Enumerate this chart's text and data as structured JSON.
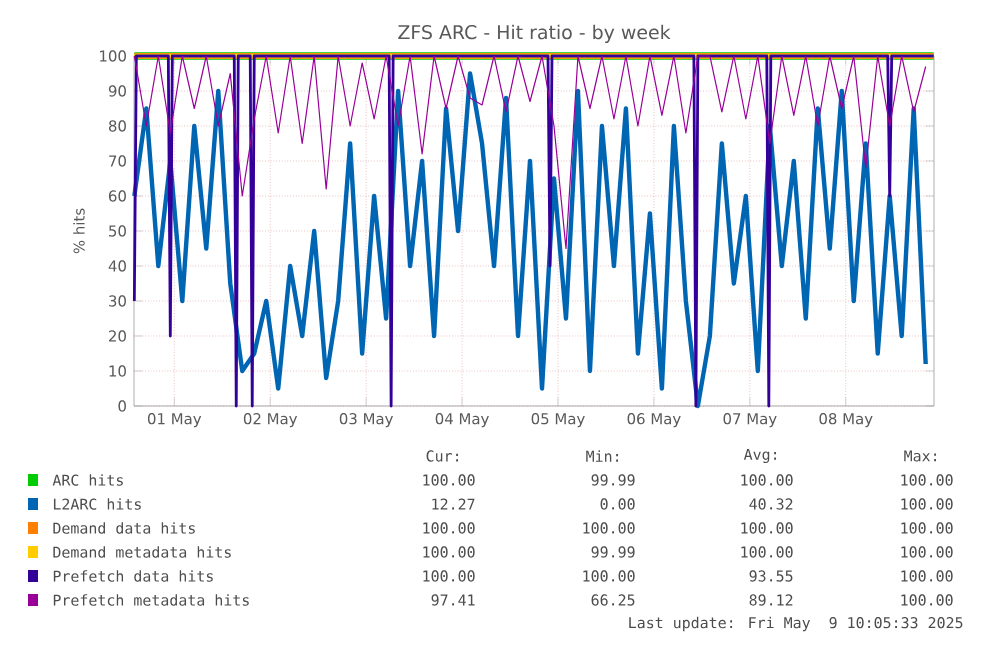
{
  "chart_data": {
    "type": "line",
    "title": "ZFS ARC - Hit ratio - by week",
    "ylabel": "% hits",
    "xlim": [
      "2025-04-30T13:55",
      "2025-05-08T22:05"
    ],
    "ylim": [
      0,
      100
    ],
    "xticks": [
      {
        "value": "2025-05-01",
        "label": "01 May"
      },
      {
        "value": "2025-05-02",
        "label": "02 May"
      },
      {
        "value": "2025-05-03",
        "label": "03 May"
      },
      {
        "value": "2025-05-04",
        "label": "04 May"
      },
      {
        "value": "2025-05-05",
        "label": "05 May"
      },
      {
        "value": "2025-05-06",
        "label": "06 May"
      },
      {
        "value": "2025-05-07",
        "label": "07 May"
      },
      {
        "value": "2025-05-08",
        "label": "08 May"
      }
    ],
    "yticks": [
      0,
      10,
      20,
      30,
      40,
      50,
      60,
      70,
      80,
      90,
      100
    ],
    "grid": true,
    "legend": "bottom",
    "x": [
      "2025-04-30T14:00",
      "2025-04-30T17:00",
      "2025-04-30T20:00",
      "2025-04-30T23:00",
      "2025-05-01T02:00",
      "2025-05-01T05:00",
      "2025-05-01T08:00",
      "2025-05-01T11:00",
      "2025-05-01T14:00",
      "2025-05-01T17:00",
      "2025-05-01T20:00",
      "2025-05-01T23:00",
      "2025-05-02T02:00",
      "2025-05-02T05:00",
      "2025-05-02T08:00",
      "2025-05-02T11:00",
      "2025-05-02T14:00",
      "2025-05-02T17:00",
      "2025-05-02T20:00",
      "2025-05-02T23:00",
      "2025-05-03T02:00",
      "2025-05-03T05:00",
      "2025-05-03T08:00",
      "2025-05-03T11:00",
      "2025-05-03T14:00",
      "2025-05-03T17:00",
      "2025-05-03T20:00",
      "2025-05-03T23:00",
      "2025-05-04T02:00",
      "2025-05-04T05:00",
      "2025-05-04T08:00",
      "2025-05-04T11:00",
      "2025-05-04T14:00",
      "2025-05-04T17:00",
      "2025-05-04T20:00",
      "2025-05-04T23:00",
      "2025-05-05T02:00",
      "2025-05-05T05:00",
      "2025-05-05T08:00",
      "2025-05-05T11:00",
      "2025-05-05T14:00",
      "2025-05-05T17:00",
      "2025-05-05T20:00",
      "2025-05-05T23:00",
      "2025-05-06T02:00",
      "2025-05-06T05:00",
      "2025-05-06T08:00",
      "2025-05-06T11:00",
      "2025-05-06T14:00",
      "2025-05-06T17:00",
      "2025-05-06T20:00",
      "2025-05-06T23:00",
      "2025-05-07T02:00",
      "2025-05-07T05:00",
      "2025-05-07T08:00",
      "2025-05-07T11:00",
      "2025-05-07T14:00",
      "2025-05-07T17:00",
      "2025-05-07T20:00",
      "2025-05-07T23:00",
      "2025-05-08T02:00",
      "2025-05-08T05:00",
      "2025-05-08T08:00",
      "2025-05-08T11:00",
      "2025-05-08T14:00",
      "2025-05-08T17:00",
      "2025-05-08T20:00"
    ],
    "series": [
      {
        "name": "ARC hits",
        "color": "#00cc00",
        "x": [
          "2025-04-30T14:00",
          "2025-05-08T22:00"
        ],
        "values": [
          100,
          100
        ]
      },
      {
        "name": "L2ARC hits",
        "color": "#0066b3",
        "values": [
          60,
          85,
          40,
          70,
          30,
          80,
          45,
          90,
          35,
          10,
          15,
          30,
          5,
          40,
          20,
          50,
          8,
          30,
          75,
          15,
          60,
          25,
          90,
          40,
          70,
          20,
          85,
          50,
          95,
          75,
          40,
          88,
          20,
          70,
          5,
          65,
          25,
          90,
          10,
          80,
          40,
          85,
          15,
          55,
          5,
          80,
          30,
          0,
          20,
          75,
          35,
          60,
          10,
          80,
          40,
          70,
          25,
          85,
          45,
          90,
          30,
          75,
          15,
          60,
          20,
          85,
          12
        ]
      },
      {
        "name": "Demand data hits",
        "color": "#ff8000",
        "x": [
          "2025-04-30T14:00",
          "2025-05-08T22:00"
        ],
        "values": [
          100,
          100
        ]
      },
      {
        "name": "Demand metadata hits",
        "color": "#ffcc00",
        "x": [
          "2025-04-30T14:00",
          "2025-05-08T22:00"
        ],
        "values": [
          100,
          100
        ]
      },
      {
        "name": "Prefetch data hits",
        "color": "#330099",
        "x": [
          "2025-04-30T14:00",
          "2025-04-30T14:30",
          "2025-04-30T22:30",
          "2025-04-30T23:00",
          "2025-04-30T23:30",
          "2025-05-01T15:00",
          "2025-05-01T15:30",
          "2025-05-01T16:00",
          "2025-05-01T19:00",
          "2025-05-01T19:30",
          "2025-05-01T20:00",
          "2025-05-03T05:45",
          "2025-05-03T06:15",
          "2025-05-03T06:45",
          "2025-05-04T21:30",
          "2025-05-04T22:00",
          "2025-05-04T22:30",
          "2025-05-06T10:00",
          "2025-05-06T10:30",
          "2025-05-06T11:00",
          "2025-05-07T04:15",
          "2025-05-07T04:45",
          "2025-05-07T05:15",
          "2025-05-08T10:30",
          "2025-05-08T11:00",
          "2025-05-08T11:30",
          "2025-05-08T22:00"
        ],
        "values": [
          30,
          100,
          100,
          20,
          100,
          100,
          0,
          100,
          100,
          0,
          100,
          100,
          0,
          100,
          100,
          40,
          100,
          100,
          0,
          100,
          100,
          0,
          100,
          100,
          60,
          100,
          100
        ]
      },
      {
        "name": "Prefetch metadata hits",
        "color": "#990099",
        "values": [
          100,
          80,
          100,
          78,
          100,
          85,
          100,
          80,
          95,
          60,
          82,
          100,
          78,
          100,
          75,
          100,
          62,
          100,
          80,
          98,
          82,
          100,
          80,
          100,
          72,
          100,
          85,
          100,
          88,
          86,
          100,
          84,
          100,
          87,
          100,
          80,
          45,
          100,
          85,
          100,
          82,
          100,
          80,
          100,
          83,
          100,
          78,
          100,
          100,
          84,
          100,
          82,
          100,
          75,
          100,
          83,
          100,
          80,
          100,
          85,
          100,
          68,
          100,
          80,
          100,
          84,
          97
        ]
      }
    ],
    "annotations": [
      "Cur:",
      "Min:",
      "Avg:",
      "Max:",
      "100.00",
      "99.99",
      "100.00",
      "100.00",
      "12.27",
      "0.00",
      "40.32",
      "100.00",
      "100.00",
      "100.00",
      "100.00",
      "100.00",
      "100.00",
      "99.99",
      "100.00",
      "100.00",
      "100.00",
      "100.00",
      "93.55",
      "100.00",
      "97.41",
      "66.25",
      "89.12",
      "100.00",
      "Last update: Fri May  9 10:05:33 2025"
    ]
  }
}
